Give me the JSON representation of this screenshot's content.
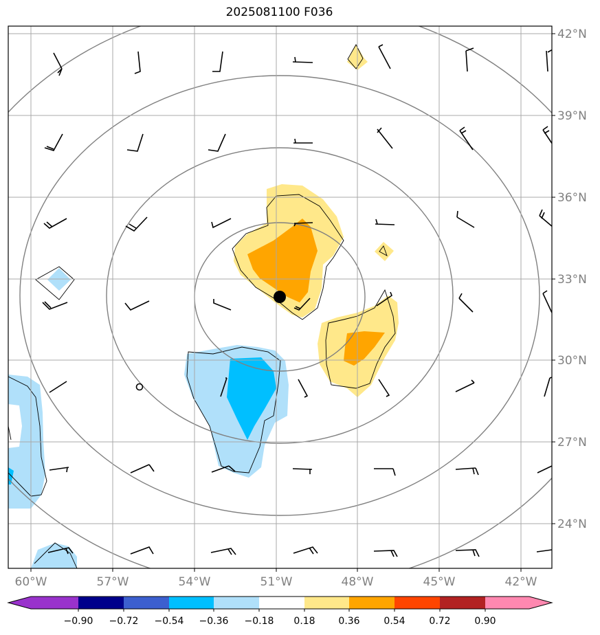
{
  "title": "2025081100 F036",
  "lon_labels": [
    "60°W",
    "57°W",
    "54°W",
    "51°W",
    "48°W",
    "45°W",
    "42°W"
  ],
  "lat_labels": [
    "42°N",
    "39°N",
    "36°N",
    "33°N",
    "30°N",
    "27°N",
    "24°N"
  ],
  "colorbar": {
    "ticks": [
      "−0.90",
      "−0.72",
      "−0.54",
      "−0.36",
      "−0.18",
      "0.18",
      "0.36",
      "0.54",
      "0.72",
      "0.90"
    ],
    "colors": [
      "#9932cc",
      "#00008b",
      "#3c5fcf",
      "#00bfff",
      "#b0e0fa",
      "#ffffff",
      "#ffe88a",
      "#ffa500",
      "#ff4500",
      "#b22222",
      "#ff88b0"
    ]
  },
  "center_marker": {
    "lon": "50.9°W",
    "lat": "32.4°N"
  }
}
